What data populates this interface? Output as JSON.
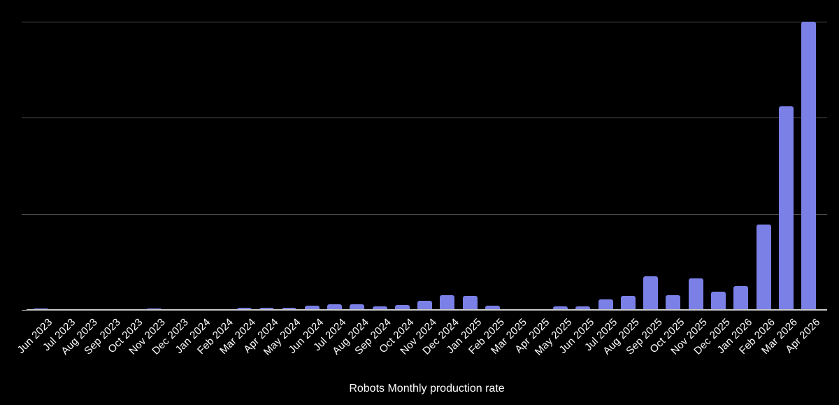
{
  "page": {
    "background_color": "#000000"
  },
  "chart_data": {
    "type": "bar",
    "title": "Robots Monthly production rate",
    "xlabel": "",
    "ylabel": "",
    "y_axis_labels_visible": false,
    "legend_position": "none",
    "grid": true,
    "ylim": [
      0,
      3
    ],
    "gridline_values": [
      1,
      2,
      3
    ],
    "categories": [
      "Jun 2023",
      "Jul 2023",
      "Aug 2023",
      "Sep 2023",
      "Oct 2023",
      "Nov 2023",
      "Dec 2023",
      "Jan 2024",
      "Feb 2024",
      "Mar 2024",
      "Apr 2024",
      "May 2024",
      "Jun 2024",
      "Jul 2024",
      "Aug 2024",
      "Sep 2024",
      "Oct 2024",
      "Nov 2024",
      "Dec 2024",
      "Jan 2025",
      "Feb 2025",
      "Mar 2025",
      "Apr 2025",
      "May 2025",
      "Jun 2025",
      "Jul 2025",
      "Aug 2025",
      "Sep 2025",
      "Oct 2025",
      "Nov 2025",
      "Dec 2025",
      "Jan 2026",
      "Feb 2026",
      "Mar 2026",
      "Apr 2026"
    ],
    "values": [
      0.015,
      0,
      0,
      0,
      0,
      0.015,
      0,
      0,
      0,
      0.022,
      0.022,
      0.022,
      0.044,
      0.058,
      0.058,
      0.04,
      0.051,
      0.095,
      0.153,
      0.146,
      0.047,
      0,
      0,
      0.036,
      0.04,
      0.109,
      0.146,
      0.35,
      0.153,
      0.328,
      0.189,
      0.248,
      0.89,
      2.12,
      3.0
    ],
    "colors": {
      "bar": "#7b80e6",
      "gridline": "#4f4f4f",
      "axis_line": "#c9c9c9",
      "label_text": "#ffffff",
      "title_text": "#ffffff",
      "background": "#000000"
    }
  }
}
